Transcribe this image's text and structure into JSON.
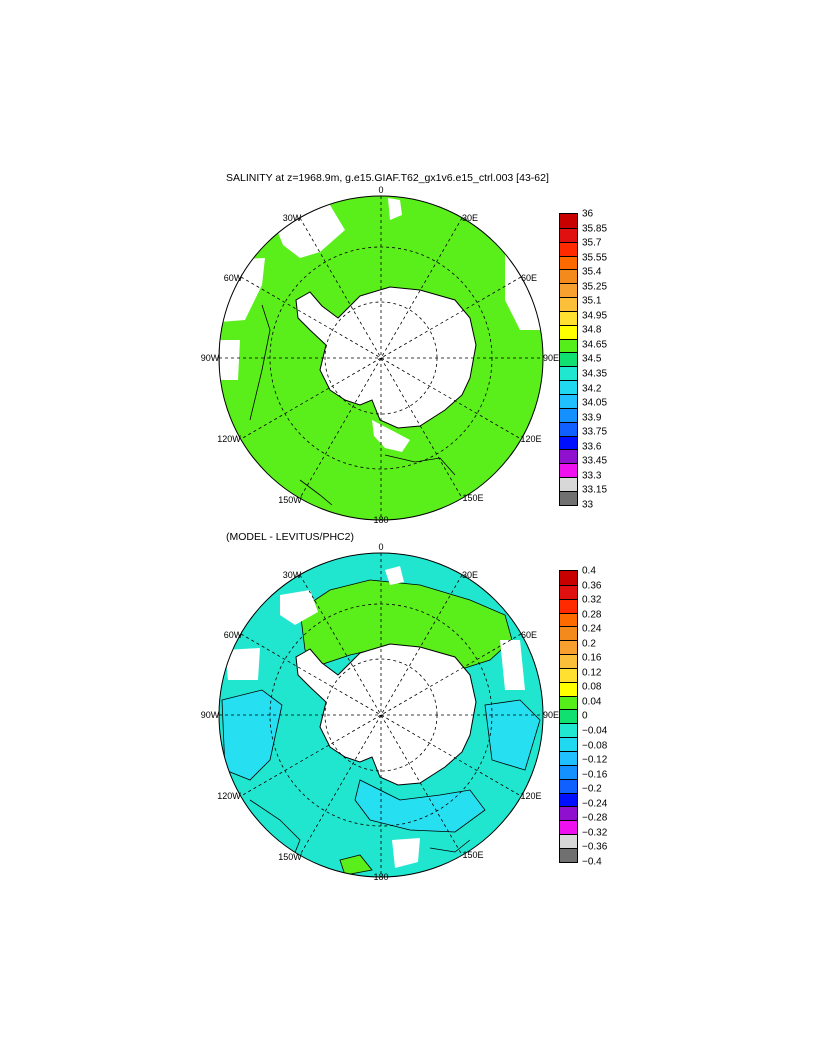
{
  "map1": {
    "title": "SALINITY at z=1968.9m, g.e15.GIAF.T62_gx1v6.e15_ctrl.003 [43-62]",
    "lon_labels": [
      "0",
      "30E",
      "60E",
      "90E",
      "120E",
      "150E",
      "180",
      "150W",
      "120W",
      "90W",
      "60W",
      "30W"
    ],
    "fill_color": "#5aee1a",
    "colorbar": {
      "labels": [
        "36",
        "35.85",
        "35.7",
        "35.55",
        "35.4",
        "35.25",
        "35.1",
        "34.95",
        "34.8",
        "34.65",
        "34.5",
        "34.35",
        "34.2",
        "34.05",
        "33.9",
        "33.75",
        "33.6",
        "33.45",
        "33.3",
        "33.15",
        "33"
      ],
      "colors": [
        "#c80000",
        "#e01010",
        "#ff2a00",
        "#ff6a00",
        "#f58a1c",
        "#f7a030",
        "#fbbf3a",
        "#ffe030",
        "#ffff00",
        "#55ee1a",
        "#10e070",
        "#20e8d0",
        "#20d8f0",
        "#20c0ff",
        "#1490ff",
        "#1060ff",
        "#0010ff",
        "#9010d0",
        "#ee10ee",
        "#d8d8d8",
        "#707070"
      ]
    }
  },
  "map2": {
    "title": "(MODEL - LEVITUS/PHC2)",
    "lon_labels": [
      "0",
      "30E",
      "60E",
      "90E",
      "120E",
      "150E",
      "180",
      "150W",
      "120W",
      "90W",
      "60W",
      "30W"
    ],
    "fill_color": "#20e6cf",
    "colorbar": {
      "labels": [
        "0.4",
        "0.36",
        "0.32",
        "0.28",
        "0.24",
        "0.2",
        "0.16",
        "0.12",
        "0.08",
        "0.04",
        "0",
        "−0.04",
        "−0.08",
        "−0.12",
        "−0.16",
        "−0.2",
        "−0.24",
        "−0.28",
        "−0.32",
        "−0.36",
        "−0.4"
      ],
      "colors": [
        "#c80000",
        "#e01010",
        "#ff2a00",
        "#ff6a00",
        "#f58a1c",
        "#f7a030",
        "#fbbf3a",
        "#ffe030",
        "#ffff00",
        "#55ee1a",
        "#10e070",
        "#20e8d0",
        "#20d8f0",
        "#20c0ff",
        "#1490ff",
        "#1060ff",
        "#0010ff",
        "#9010d0",
        "#ee10ee",
        "#d8d8d8",
        "#707070"
      ]
    }
  }
}
